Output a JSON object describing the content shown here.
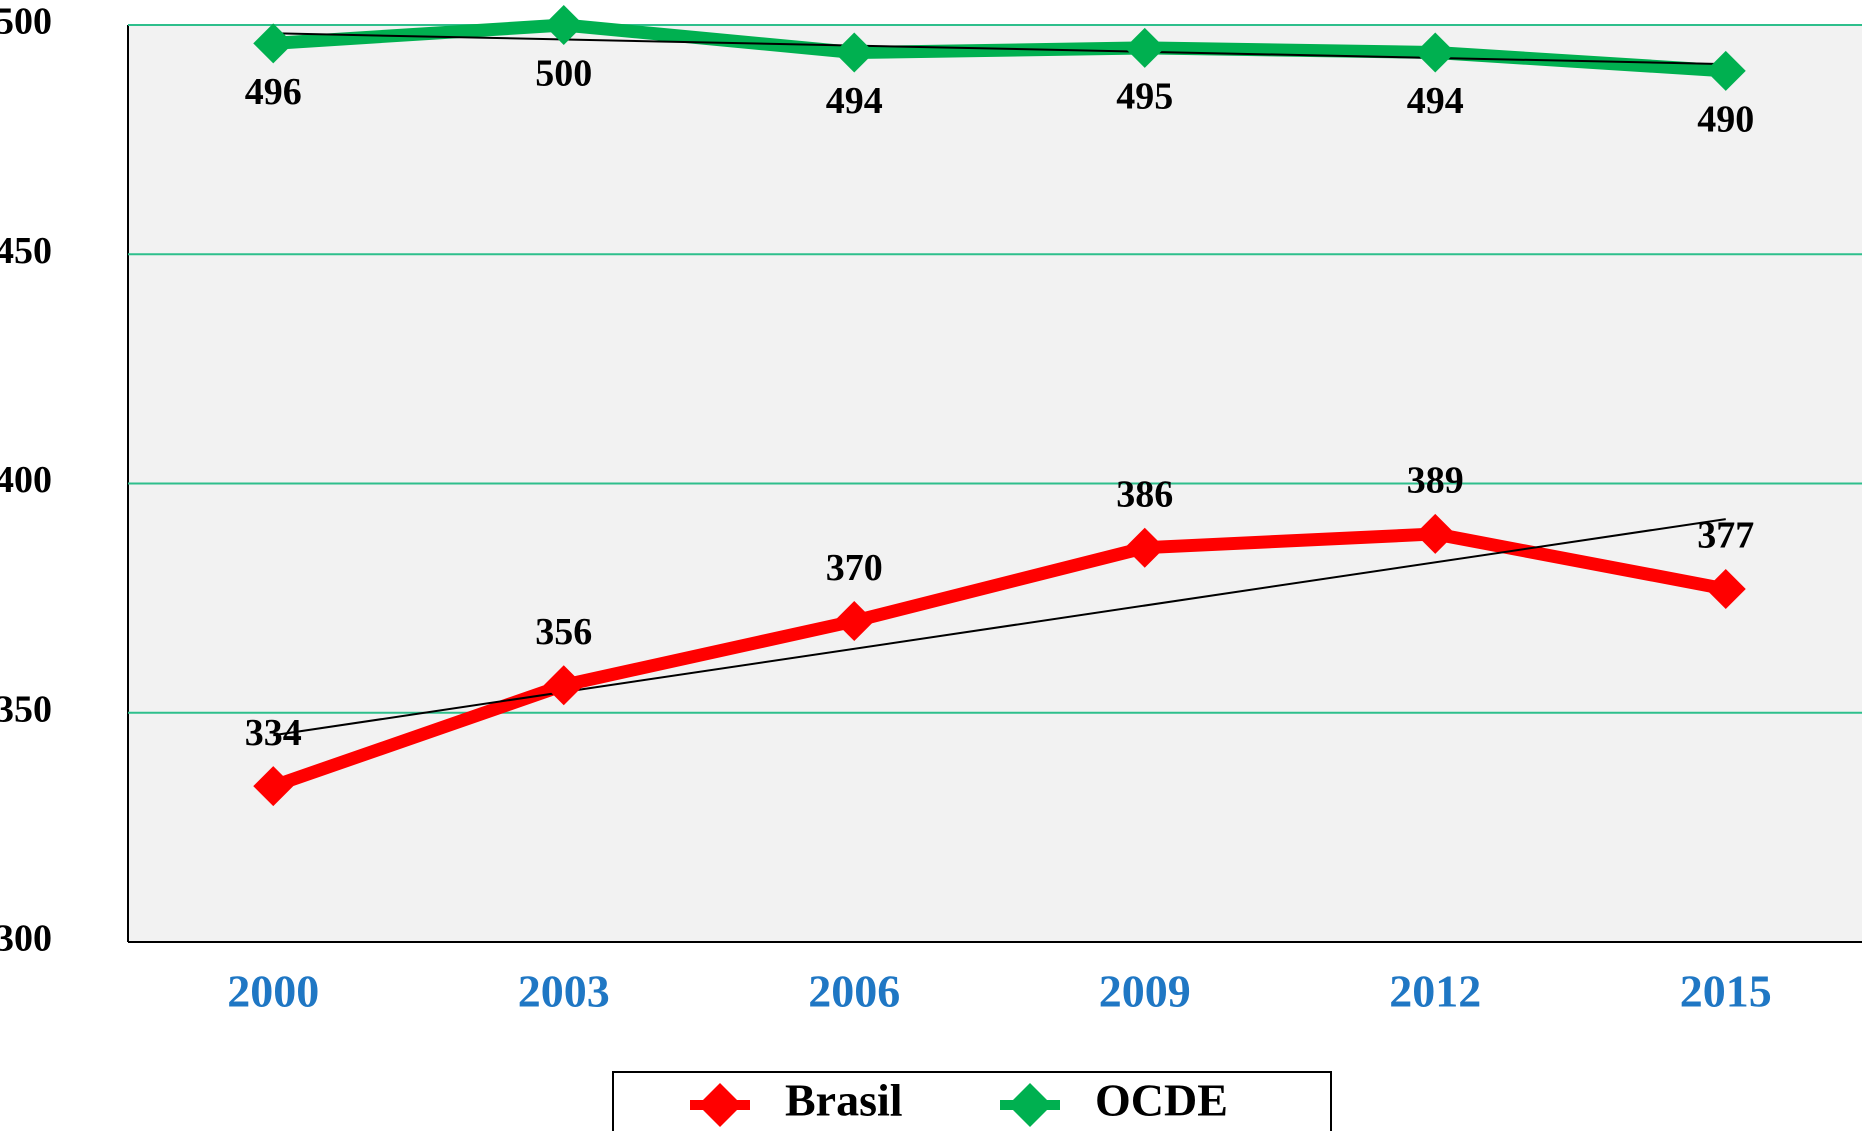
{
  "chart_data": {
    "type": "line",
    "categories": [
      "2000",
      "2003",
      "2006",
      "2009",
      "2012",
      "2015"
    ],
    "series": [
      {
        "name": "Brasil",
        "color": "#ff0000",
        "values": [
          334,
          356,
          370,
          386,
          389,
          377
        ]
      },
      {
        "name": "OCDE",
        "color": "#00b050",
        "values": [
          496,
          500,
          494,
          495,
          494,
          490
        ]
      }
    ],
    "ylim": [
      300,
      500
    ],
    "yticks": [
      300,
      350,
      400,
      450,
      500
    ],
    "grid": true,
    "trendline": true,
    "legend": "bottom"
  }
}
